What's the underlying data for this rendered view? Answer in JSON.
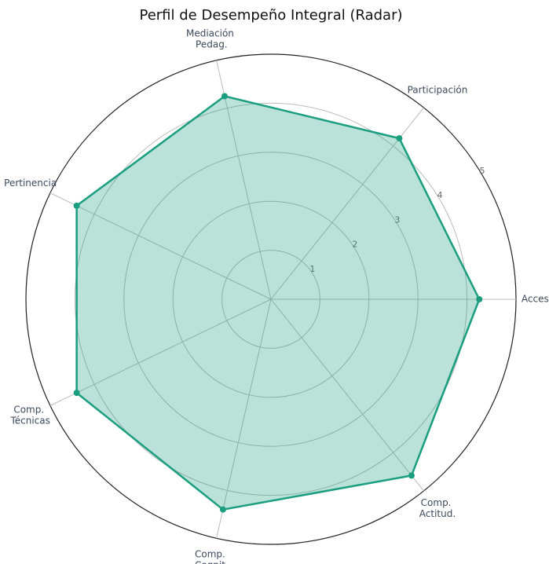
{
  "chart_data": {
    "type": "radar",
    "title": "Perfil de Desempeño Integral (Radar)",
    "categories": [
      "Acceso",
      "Participación",
      "Mediación Pedag.",
      "Pertinencia",
      "Comp. Técnicas",
      "Comp. Cognit.",
      "Comp. Actitud."
    ],
    "series": [
      {
        "name": null,
        "color": "#1a9e7f",
        "values": [
          4.25,
          4.2,
          4.25,
          4.4,
          4.4,
          4.4,
          4.6
        ]
      }
    ],
    "ylim": [
      0,
      5
    ],
    "yticks": [
      1,
      2,
      3,
      4,
      5
    ],
    "grid": true
  }
}
